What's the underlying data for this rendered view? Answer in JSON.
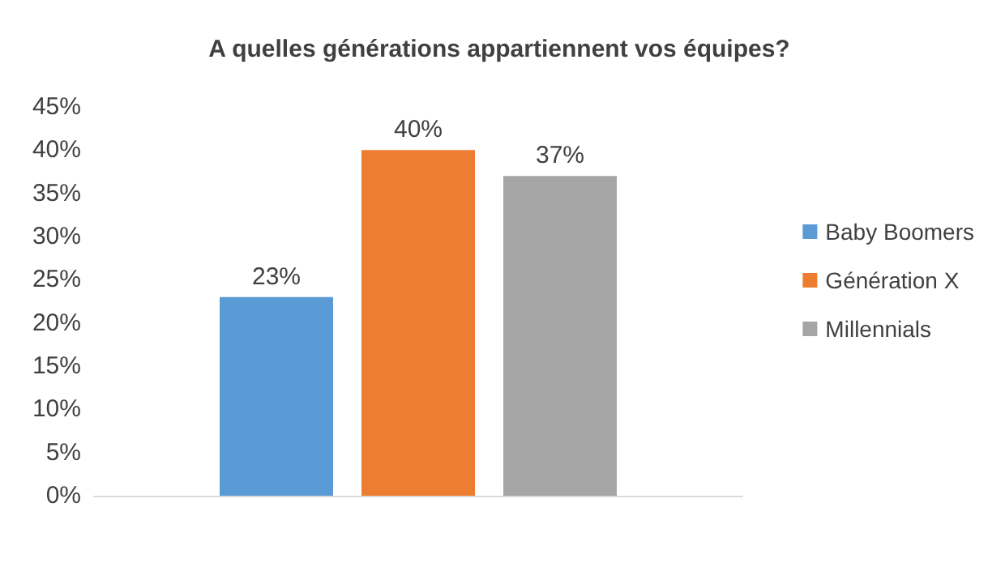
{
  "chart_data": {
    "type": "bar",
    "title": "A quelles générations appartiennent vos équipes?",
    "categories": [
      null
    ],
    "series": [
      {
        "name": "Baby Boomers",
        "color": "#5b9bd5",
        "values": [
          23
        ],
        "value_labels": [
          "23%"
        ]
      },
      {
        "name": "Génération X",
        "color": "#ed7d31",
        "values": [
          40
        ],
        "value_labels": [
          "40%"
        ]
      },
      {
        "name": "Millennials",
        "color": "#a5a5a5",
        "values": [
          37
        ],
        "value_labels": [
          "37%"
        ]
      }
    ],
    "ylim": [
      0,
      45
    ],
    "yticks": [
      {
        "value": 0,
        "label": "0%"
      },
      {
        "value": 5,
        "label": "5%"
      },
      {
        "value": 10,
        "label": "10%"
      },
      {
        "value": 15,
        "label": "15%"
      },
      {
        "value": 20,
        "label": "20%"
      },
      {
        "value": 25,
        "label": "25%"
      },
      {
        "value": 30,
        "label": "30%"
      },
      {
        "value": 35,
        "label": "35%"
      },
      {
        "value": 40,
        "label": "40%"
      },
      {
        "value": 45,
        "label": "45%"
      }
    ],
    "grid": false,
    "legend": "right"
  }
}
